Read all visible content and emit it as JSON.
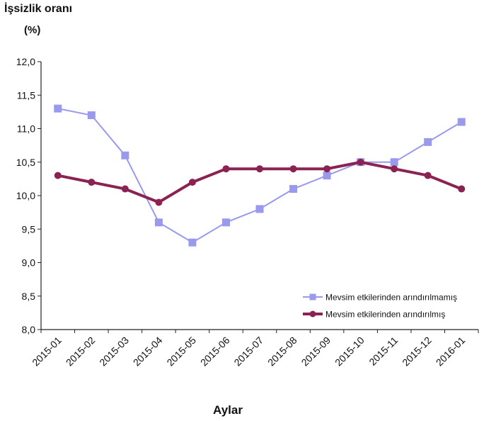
{
  "chart_data": {
    "type": "line",
    "ylabel": "İşsizlik oranı",
    "yunit": "(%)",
    "xlabel": "Aylar",
    "ylim": [
      8.0,
      12.0
    ],
    "yticks": [
      "8,0",
      "8,5",
      "9,0",
      "9,5",
      "10,0",
      "10,5",
      "11,0",
      "11,5",
      "12,0"
    ],
    "categories": [
      "2015-01",
      "2015-02",
      "2015-03",
      "2015-04",
      "2015-05",
      "2015-06",
      "2015-07",
      "2015-08",
      "2015-09",
      "2015-10",
      "2015-11",
      "2015-12",
      "2016-01"
    ],
    "series": [
      {
        "name": "Mevsim etkilerinden arındırılmamış",
        "color": "#9999ee",
        "marker": "square",
        "values": [
          11.3,
          11.2,
          10.6,
          9.6,
          9.3,
          9.6,
          9.8,
          10.1,
          10.3,
          10.5,
          10.5,
          10.8,
          11.1
        ]
      },
      {
        "name": "Mevsim etkilerinden arındırılmış",
        "color": "#8b2252",
        "marker": "circle",
        "values": [
          10.3,
          10.2,
          10.1,
          9.9,
          10.2,
          10.4,
          10.4,
          10.4,
          10.4,
          10.5,
          10.4,
          10.3,
          10.1
        ]
      }
    ],
    "grid": false,
    "legend_position": "bottom-right"
  }
}
